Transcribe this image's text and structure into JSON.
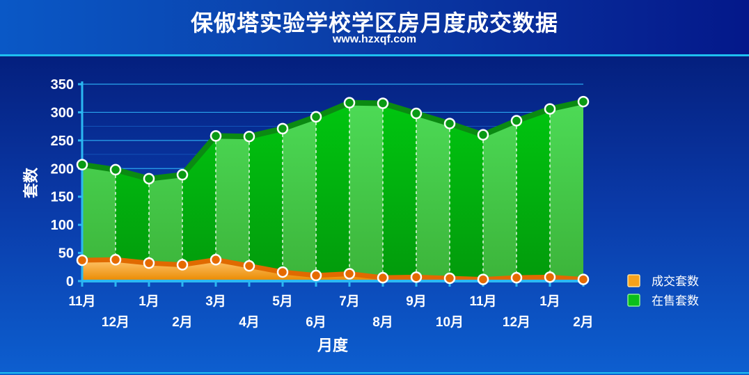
{
  "page": {
    "title": "保俶塔实验学校学区房月度成交数据",
    "subtitle": "www.hzxqf.com"
  },
  "colors": {
    "sale_fill": "#f5a623",
    "sale_line": "#e57800",
    "stock_fill_light": "#44d04a",
    "stock_fill_dark": "#02a40c",
    "stock_line": "#0a8a10"
  },
  "chart_data": {
    "type": "area",
    "xlabel": "月度",
    "ylabel": "套数",
    "ylim": [
      0,
      350
    ],
    "yticks": [
      0,
      50,
      100,
      150,
      200,
      250,
      300,
      350
    ],
    "grid": true,
    "legend_position": "right",
    "categories": [
      "11月",
      "12月",
      "1月",
      "2月",
      "3月",
      "4月",
      "5月",
      "6月",
      "7月",
      "8月",
      "9月",
      "10月",
      "11月",
      "12月",
      "1月",
      "2月"
    ],
    "series": [
      {
        "name": "成交套数",
        "values": [
          37,
          38,
          32,
          29,
          38,
          27,
          16,
          10,
          13,
          6,
          7,
          5,
          3,
          6,
          7,
          3
        ]
      },
      {
        "name": "在售套数",
        "values": [
          207,
          198,
          182,
          189,
          258,
          257,
          271,
          292,
          317,
          316,
          298,
          280,
          260,
          285,
          306,
          319
        ]
      }
    ]
  }
}
